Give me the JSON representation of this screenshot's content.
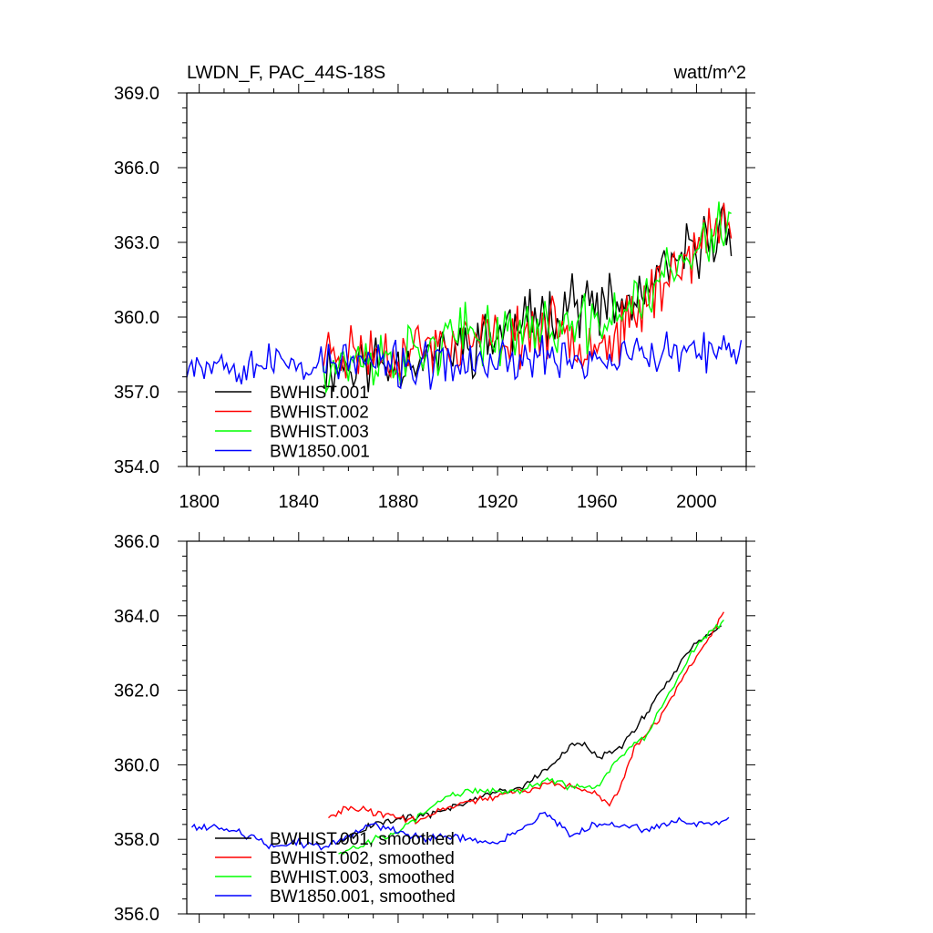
{
  "chart_data": [
    {
      "type": "line",
      "title": "LWDN_F, PAC_44S-18S",
      "units": "watt/m^2",
      "xlim": [
        1795,
        2020
      ],
      "ylim": [
        354.0,
        369.0
      ],
      "x_ticks": [
        1800,
        1840,
        1880,
        1920,
        1960,
        2000
      ],
      "x_tick_labels": [
        "1800",
        "1840",
        "1880",
        "1920",
        "1960",
        "2000"
      ],
      "y_ticks": [
        354.0,
        357.0,
        360.0,
        363.0,
        366.0,
        369.0
      ],
      "y_tick_labels": [
        "354.0",
        "357.0",
        "360.0",
        "363.0",
        "366.0",
        "369.0"
      ],
      "legend_position": "lower-left",
      "series": [
        {
          "name": "BWHIST.001",
          "color": "#000000",
          "start": 1850,
          "end": 2014,
          "seed": 11,
          "trend": [
            [
              1850,
              358.0
            ],
            [
              1880,
              358.2
            ],
            [
              1900,
              358.6
            ],
            [
              1920,
              359.3
            ],
            [
              1940,
              360.2
            ],
            [
              1950,
              360.7
            ],
            [
              1960,
              360.3
            ],
            [
              1975,
              360.5
            ],
            [
              1990,
              362.0
            ],
            [
              2014,
              363.8
            ]
          ],
          "noise": 1.5
        },
        {
          "name": "BWHIST.002",
          "color": "#ff0000",
          "start": 1850,
          "end": 2014,
          "seed": 23,
          "trend": [
            [
              1850,
              358.6
            ],
            [
              1880,
              358.6
            ],
            [
              1900,
              358.9
            ],
            [
              1920,
              359.1
            ],
            [
              1940,
              359.5
            ],
            [
              1960,
              359.1
            ],
            [
              1970,
              359.3
            ],
            [
              1980,
              360.8
            ],
            [
              1995,
              362.3
            ],
            [
              2014,
              364.0
            ]
          ],
          "noise": 1.5
        },
        {
          "name": "BWHIST.003",
          "color": "#00ff00",
          "start": 1850,
          "end": 2014,
          "seed": 37,
          "trend": [
            [
              1850,
              358.2
            ],
            [
              1880,
              358.3
            ],
            [
              1900,
              359.1
            ],
            [
              1920,
              359.4
            ],
            [
              1940,
              359.6
            ],
            [
              1960,
              359.6
            ],
            [
              1970,
              360.3
            ],
            [
              1985,
              361.4
            ],
            [
              2000,
              362.6
            ],
            [
              2014,
              363.9
            ]
          ],
          "noise": 1.5
        },
        {
          "name": "BW1850.001",
          "color": "#0000ff",
          "start": 1795,
          "end": 2018,
          "seed": 53,
          "trend": [
            [
              1795,
              358.3
            ],
            [
              1830,
              358.1
            ],
            [
              1860,
              358.2
            ],
            [
              1890,
              358.0
            ],
            [
              1920,
              358.2
            ],
            [
              1940,
              358.4
            ],
            [
              1960,
              358.3
            ],
            [
              1990,
              358.5
            ],
            [
              2018,
              358.5
            ]
          ],
          "noise": 1.1
        }
      ]
    },
    {
      "type": "line",
      "title": "",
      "xlim": [
        1795,
        2020
      ],
      "ylim": [
        356.0,
        366.0
      ],
      "x_ticks": [
        1800,
        1840,
        1880,
        1920,
        1960,
        2000
      ],
      "y_ticks": [
        356.0,
        358.0,
        360.0,
        362.0,
        364.0,
        366.0
      ],
      "y_tick_labels": [
        "356.0",
        "358.0",
        "360.0",
        "362.0",
        "364.0",
        "366.0"
      ],
      "legend_position": "lower-left",
      "series": [
        {
          "name": "BWHIST.001, smoothed",
          "color": "#000000",
          "start": 1856,
          "end": 2010,
          "seed": 101,
          "trend": [
            [
              1856,
              357.9
            ],
            [
              1870,
              358.4
            ],
            [
              1880,
              358.6
            ],
            [
              1890,
              358.6
            ],
            [
              1900,
              358.8
            ],
            [
              1915,
              359.2
            ],
            [
              1930,
              359.4
            ],
            [
              1940,
              359.9
            ],
            [
              1950,
              360.5
            ],
            [
              1955,
              360.6
            ],
            [
              1960,
              360.2
            ],
            [
              1970,
              360.5
            ],
            [
              1980,
              361.4
            ],
            [
              1990,
              362.4
            ],
            [
              2000,
              363.3
            ],
            [
              2010,
              363.7
            ]
          ],
          "noise": 0.12
        },
        {
          "name": "BWHIST.002, smoothed",
          "color": "#ff0000",
          "start": 1852,
          "end": 2011,
          "seed": 113,
          "trend": [
            [
              1852,
              358.6
            ],
            [
              1860,
              358.9
            ],
            [
              1870,
              358.7
            ],
            [
              1880,
              358.6
            ],
            [
              1890,
              358.5
            ],
            [
              1900,
              358.9
            ],
            [
              1915,
              359.1
            ],
            [
              1930,
              359.3
            ],
            [
              1940,
              359.5
            ],
            [
              1950,
              359.4
            ],
            [
              1960,
              359.2
            ],
            [
              1965,
              358.9
            ],
            [
              1970,
              359.5
            ],
            [
              1975,
              360.5
            ],
            [
              1985,
              361.2
            ],
            [
              1995,
              362.4
            ],
            [
              2005,
              363.4
            ],
            [
              2011,
              364.1
            ]
          ],
          "noise": 0.12
        },
        {
          "name": "BWHIST.003, smoothed",
          "color": "#00ff00",
          "start": 1856,
          "end": 2011,
          "seed": 127,
          "trend": [
            [
              1856,
              357.6
            ],
            [
              1870,
              358.0
            ],
            [
              1880,
              358.2
            ],
            [
              1890,
              358.7
            ],
            [
              1900,
              359.2
            ],
            [
              1910,
              359.3
            ],
            [
              1920,
              359.3
            ],
            [
              1930,
              359.3
            ],
            [
              1940,
              359.6
            ],
            [
              1950,
              359.4
            ],
            [
              1960,
              359.4
            ],
            [
              1970,
              360.3
            ],
            [
              1980,
              360.8
            ],
            [
              1990,
              362.0
            ],
            [
              2000,
              363.2
            ],
            [
              2011,
              363.9
            ]
          ],
          "noise": 0.12
        },
        {
          "name": "BW1850.001, smoothed",
          "color": "#0000ff",
          "start": 1797,
          "end": 2013,
          "seed": 139,
          "trend": [
            [
              1797,
              358.3
            ],
            [
              1810,
              358.3
            ],
            [
              1820,
              358.1
            ],
            [
              1830,
              357.8
            ],
            [
              1840,
              357.9
            ],
            [
              1850,
              357.8
            ],
            [
              1860,
              358.1
            ],
            [
              1870,
              358.4
            ],
            [
              1880,
              358.2
            ],
            [
              1890,
              358.0
            ],
            [
              1900,
              358.1
            ],
            [
              1910,
              358.0
            ],
            [
              1920,
              357.9
            ],
            [
              1930,
              358.3
            ],
            [
              1940,
              358.7
            ],
            [
              1950,
              358.1
            ],
            [
              1960,
              358.4
            ],
            [
              1970,
              358.4
            ],
            [
              1980,
              358.2
            ],
            [
              1990,
              358.5
            ],
            [
              2000,
              358.4
            ],
            [
              2013,
              358.5
            ]
          ],
          "noise": 0.12
        }
      ]
    }
  ]
}
